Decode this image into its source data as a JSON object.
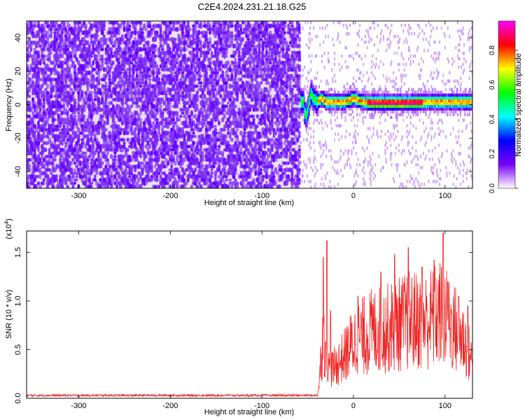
{
  "title": "C2E4.2024.231.21.18.G25",
  "colors": {
    "snr_line": "#ee2222",
    "spec_noise_dark": "#7a2cf0",
    "spec_noise_light": "#d9c4fb"
  },
  "colorbar": {
    "label": "Normalized spectral amplitude",
    "range": [
      0.0,
      0.97
    ],
    "ticks": [
      "0.0",
      "0.2",
      "0.4",
      "0.6",
      "0.8"
    ],
    "tick_values": [
      0.0,
      0.2,
      0.4,
      0.6,
      0.8
    ],
    "colormap": [
      "#ffffff",
      "#7a00ff",
      "#0000ff",
      "#00ffff",
      "#00ff00",
      "#ffff00",
      "#ff0000",
      "#ff00ff"
    ]
  },
  "chart_data": [
    {
      "type": "heatmap",
      "xlabel": "Height of straight line (km)",
      "ylabel": "Frequency (Hz)",
      "xlim": [
        -357,
        130
      ],
      "ylim": [
        -50,
        50
      ],
      "xticks": [
        "-300",
        "-200",
        "-100",
        "0",
        "100"
      ],
      "xtick_values": [
        -300,
        -200,
        -100,
        0,
        100
      ],
      "yticks": [
        "-40",
        "-20",
        "0",
        "20",
        "40"
      ],
      "ytick_values": [
        -40,
        -20,
        0,
        20,
        40
      ],
      "noise_region_x": [
        -357,
        -58
      ],
      "signal_region_x": [
        -58,
        130
      ],
      "signal_center_freq": [
        [
          -55,
          -4
        ],
        [
          -52,
          -8
        ],
        [
          -50,
          -3
        ],
        [
          -47,
          6
        ],
        [
          -44,
          3
        ],
        [
          -40,
          1
        ],
        [
          -35,
          3
        ],
        [
          -30,
          1
        ],
        [
          -20,
          1
        ],
        [
          -10,
          1
        ],
        [
          0,
          3
        ],
        [
          10,
          1
        ],
        [
          20,
          0.5
        ],
        [
          40,
          0.5
        ],
        [
          60,
          0.5
        ],
        [
          80,
          1
        ],
        [
          100,
          1
        ],
        [
          120,
          1
        ],
        [
          130,
          1
        ]
      ]
    },
    {
      "type": "line",
      "xlabel": "Height of straight line (km)",
      "ylabel": "SNR (10 * v/v)",
      "y_scale_label": "(x10",
      "y_scale_exponent": "4",
      "y_scale_close": ")",
      "xlim": [
        -357,
        130
      ],
      "ylim": [
        0,
        1.72
      ],
      "xticks": [
        "-300",
        "-200",
        "-100",
        "0",
        "100"
      ],
      "xtick_values": [
        -300,
        -200,
        -100,
        0,
        100
      ],
      "yticks": [
        "0.0",
        "0.5",
        "1.0",
        "1.5"
      ],
      "ytick_values": [
        0,
        0.5,
        1.0,
        1.5
      ],
      "envelope": [
        [
          -357,
          0.03
        ],
        [
          -40,
          0.03
        ],
        [
          -38,
          0.15
        ],
        [
          -35,
          0.6
        ],
        [
          -33,
          1.0
        ],
        [
          -30,
          0.5
        ],
        [
          -25,
          0.4
        ],
        [
          -20,
          0.45
        ],
        [
          -10,
          0.6
        ],
        [
          0,
          0.8
        ],
        [
          20,
          0.95
        ],
        [
          40,
          1.0
        ],
        [
          60,
          1.1
        ],
        [
          80,
          1.1
        ],
        [
          95,
          1.2
        ],
        [
          110,
          1.0
        ],
        [
          120,
          0.85
        ],
        [
          130,
          0.5
        ]
      ],
      "peaks": [
        [
          -33,
          1.45
        ],
        [
          -29,
          1.62
        ],
        [
          -25,
          0.9
        ],
        [
          5,
          1.05
        ],
        [
          30,
          1.3
        ],
        [
          45,
          1.48
        ],
        [
          60,
          1.55
        ],
        [
          75,
          1.35
        ],
        [
          88,
          1.42
        ],
        [
          98,
          1.7
        ],
        [
          103,
          1.2
        ],
        [
          115,
          1.05
        ],
        [
          125,
          0.95
        ]
      ]
    }
  ]
}
